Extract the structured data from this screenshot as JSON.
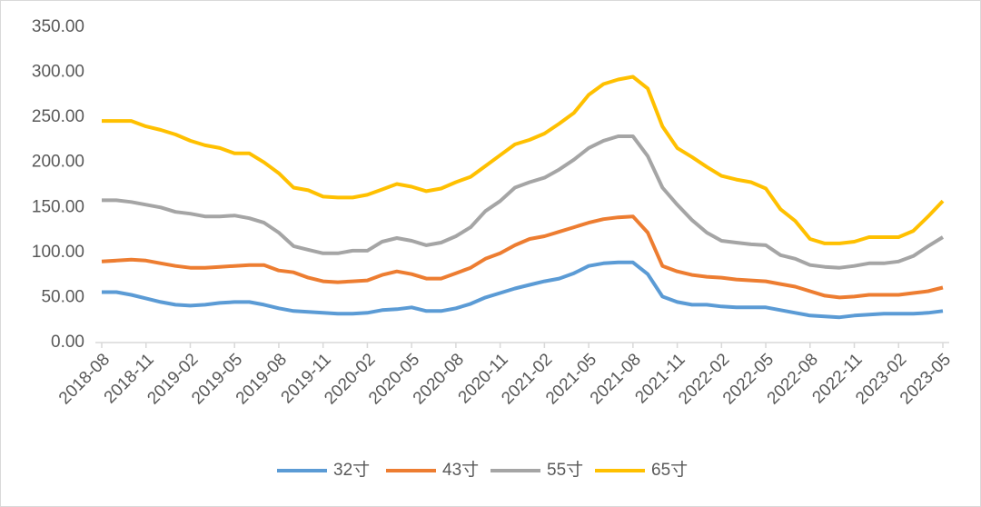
{
  "chart_data": {
    "type": "line",
    "categories": [
      "2018-08",
      null,
      null,
      "2018-11",
      null,
      null,
      "2019-02",
      null,
      null,
      "2019-05",
      null,
      null,
      "2019-08",
      null,
      null,
      "2019-11",
      null,
      null,
      "2020-02",
      null,
      null,
      "2020-05",
      null,
      null,
      "2020-08",
      null,
      null,
      "2020-11",
      null,
      null,
      "2021-02",
      null,
      null,
      "2021-05",
      null,
      null,
      "2021-08",
      null,
      null,
      "2021-11",
      null,
      null,
      "2022-02",
      null,
      null,
      "2022-05",
      null,
      null,
      "2022-08",
      null,
      null,
      "2022-11",
      null,
      null,
      "2023-02",
      null,
      null,
      "2023-05"
    ],
    "series": [
      {
        "name": "32寸",
        "color": "#5b9bd5",
        "values": [
          56,
          56,
          53,
          49,
          45,
          42,
          41,
          42,
          44,
          45,
          45,
          42,
          38,
          35,
          34,
          33,
          32,
          32,
          33,
          36,
          37,
          39,
          35,
          35,
          38,
          43,
          50,
          55,
          60,
          64,
          68,
          71,
          77,
          85,
          88,
          89,
          89,
          76,
          51,
          45,
          42,
          42,
          40,
          39,
          39,
          39,
          36,
          33,
          30,
          29,
          28,
          30,
          31,
          32,
          32,
          32,
          33,
          35
        ]
      },
      {
        "name": "43寸",
        "color": "#ed7d31",
        "values": [
          90,
          91,
          92,
          91,
          88,
          85,
          83,
          83,
          84,
          85,
          86,
          86,
          80,
          78,
          72,
          68,
          67,
          68,
          69,
          75,
          79,
          76,
          71,
          71,
          77,
          83,
          93,
          99,
          108,
          115,
          118,
          123,
          128,
          133,
          137,
          139,
          140,
          122,
          85,
          79,
          75,
          73,
          72,
          70,
          69,
          68,
          65,
          62,
          57,
          52,
          50,
          51,
          53,
          53,
          53,
          55,
          57,
          61
        ]
      },
      {
        "name": "55寸",
        "color": "#a5a5a5",
        "values": [
          158,
          158,
          156,
          153,
          150,
          145,
          143,
          140,
          140,
          141,
          138,
          133,
          122,
          107,
          103,
          99,
          99,
          102,
          102,
          112,
          116,
          113,
          108,
          111,
          118,
          128,
          146,
          157,
          172,
          178,
          183,
          192,
          203,
          216,
          224,
          229,
          229,
          207,
          172,
          153,
          136,
          122,
          113,
          111,
          109,
          108,
          97,
          93,
          86,
          84,
          83,
          85,
          88,
          88,
          90,
          96,
          107,
          117
        ]
      },
      {
        "name": "65寸",
        "color": "#ffc000",
        "values": [
          246,
          246,
          246,
          240,
          236,
          231,
          224,
          219,
          216,
          210,
          210,
          200,
          188,
          172,
          169,
          162,
          161,
          161,
          164,
          170,
          176,
          173,
          168,
          171,
          178,
          184,
          196,
          208,
          220,
          225,
          232,
          243,
          255,
          275,
          287,
          292,
          295,
          282,
          240,
          216,
          206,
          195,
          185,
          181,
          178,
          171,
          148,
          135,
          115,
          110,
          110,
          112,
          117,
          117,
          117,
          124,
          140,
          157
        ]
      }
    ],
    "ylim": [
      0,
      350
    ],
    "yticks": [
      {
        "value": 0,
        "label": "0.00"
      },
      {
        "value": 50,
        "label": "50.00"
      },
      {
        "value": 100,
        "label": "100.00"
      },
      {
        "value": 150,
        "label": "150.00"
      },
      {
        "value": 200,
        "label": "200.00"
      },
      {
        "value": 250,
        "label": "250.00"
      },
      {
        "value": 300,
        "label": "300.00"
      },
      {
        "value": 350,
        "label": "350.00"
      }
    ],
    "grid": false,
    "legend": "bottom"
  }
}
